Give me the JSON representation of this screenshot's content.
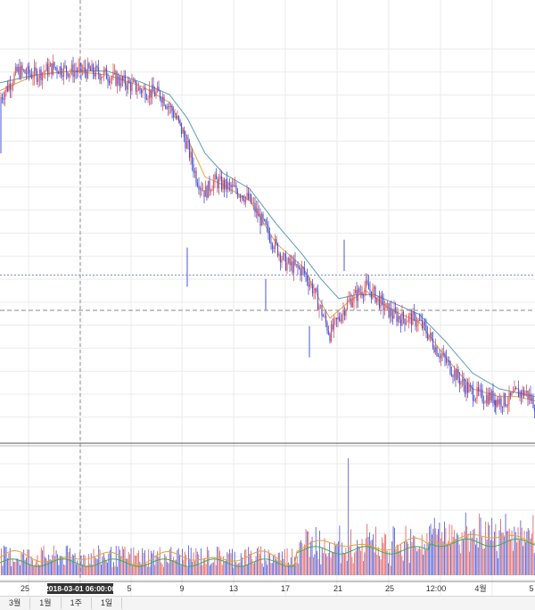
{
  "chart_data": {
    "type": "candlestick",
    "title": "",
    "xlabel": "",
    "ylabel": "",
    "grid": true,
    "legend": "none",
    "x_ticks": [
      "25",
      "5",
      "9",
      "13",
      "17",
      "21",
      "25",
      "12:00",
      "4월",
      "5"
    ],
    "crosshair_label": "2018-03-01 06:00:00",
    "colors": {
      "up_candle": "#e05a5a",
      "down_candle": "#4a55d6",
      "ma_short": "#e8a040",
      "ma_long": "#5b9bb5",
      "grid": "#ebebeb",
      "crosshair": "#8a8a8a",
      "price_line": "#7b83d6"
    },
    "close_trend": [
      {
        "x": 0,
        "y": 84
      },
      {
        "x": 2,
        "y": 91
      },
      {
        "x": 4,
        "y": 90
      },
      {
        "x": 6,
        "y": 92
      },
      {
        "x": 8,
        "y": 91
      },
      {
        "x": 10,
        "y": 91
      },
      {
        "x": 12,
        "y": 90
      },
      {
        "x": 14,
        "y": 88
      },
      {
        "x": 16,
        "y": 86
      },
      {
        "x": 18,
        "y": 85
      },
      {
        "x": 19,
        "y": 82
      },
      {
        "x": 20,
        "y": 78
      },
      {
        "x": 21,
        "y": 72
      },
      {
        "x": 22,
        "y": 64
      },
      {
        "x": 23,
        "y": 60
      },
      {
        "x": 24,
        "y": 63
      },
      {
        "x": 25,
        "y": 62
      },
      {
        "x": 26,
        "y": 61
      },
      {
        "x": 27,
        "y": 60
      },
      {
        "x": 28,
        "y": 58
      },
      {
        "x": 29,
        "y": 54
      },
      {
        "x": 30,
        "y": 50
      },
      {
        "x": 31,
        "y": 46
      },
      {
        "x": 32,
        "y": 42
      },
      {
        "x": 33,
        "y": 41
      },
      {
        "x": 34,
        "y": 40
      },
      {
        "x": 35,
        "y": 36
      },
      {
        "x": 36,
        "y": 30
      },
      {
        "x": 37,
        "y": 24
      },
      {
        "x": 38,
        "y": 28
      },
      {
        "x": 39,
        "y": 32
      },
      {
        "x": 40,
        "y": 34
      },
      {
        "x": 41,
        "y": 36
      },
      {
        "x": 42,
        "y": 34
      },
      {
        "x": 43,
        "y": 31
      },
      {
        "x": 44,
        "y": 29
      },
      {
        "x": 45,
        "y": 28
      },
      {
        "x": 46,
        "y": 28
      },
      {
        "x": 47,
        "y": 27
      },
      {
        "x": 48,
        "y": 24
      },
      {
        "x": 49,
        "y": 20
      },
      {
        "x": 50,
        "y": 17
      },
      {
        "x": 51,
        "y": 14
      },
      {
        "x": 52,
        "y": 11
      },
      {
        "x": 53,
        "y": 9
      },
      {
        "x": 54,
        "y": 8
      },
      {
        "x": 55,
        "y": 8
      },
      {
        "x": 56,
        "y": 7
      },
      {
        "x": 57,
        "y": 7
      },
      {
        "x": 58,
        "y": 9
      },
      {
        "x": 59,
        "y": 9
      },
      {
        "x": 60,
        "y": 6
      }
    ],
    "ma_short_trend": [
      {
        "x": 0,
        "y": 86
      },
      {
        "x": 4,
        "y": 90
      },
      {
        "x": 8,
        "y": 91
      },
      {
        "x": 12,
        "y": 90
      },
      {
        "x": 16,
        "y": 87
      },
      {
        "x": 19,
        "y": 83
      },
      {
        "x": 21,
        "y": 74
      },
      {
        "x": 23,
        "y": 64
      },
      {
        "x": 25,
        "y": 62
      },
      {
        "x": 28,
        "y": 58
      },
      {
        "x": 31,
        "y": 47
      },
      {
        "x": 34,
        "y": 41
      },
      {
        "x": 36,
        "y": 32
      },
      {
        "x": 37,
        "y": 28
      },
      {
        "x": 39,
        "y": 32
      },
      {
        "x": 41,
        "y": 35
      },
      {
        "x": 44,
        "y": 30
      },
      {
        "x": 47,
        "y": 27
      },
      {
        "x": 50,
        "y": 18
      },
      {
        "x": 53,
        "y": 10
      },
      {
        "x": 56,
        "y": 8
      },
      {
        "x": 58,
        "y": 8
      },
      {
        "x": 60,
        "y": 7
      }
    ],
    "ma_long_trend": [
      {
        "x": 0,
        "y": 88
      },
      {
        "x": 4,
        "y": 90
      },
      {
        "x": 8,
        "y": 91
      },
      {
        "x": 12,
        "y": 91
      },
      {
        "x": 16,
        "y": 88
      },
      {
        "x": 19,
        "y": 85
      },
      {
        "x": 21,
        "y": 79
      },
      {
        "x": 23,
        "y": 70
      },
      {
        "x": 25,
        "y": 65
      },
      {
        "x": 28,
        "y": 61
      },
      {
        "x": 31,
        "y": 52
      },
      {
        "x": 34,
        "y": 44
      },
      {
        "x": 36,
        "y": 38
      },
      {
        "x": 38,
        "y": 33
      },
      {
        "x": 40,
        "y": 34
      },
      {
        "x": 42,
        "y": 34
      },
      {
        "x": 44,
        "y": 32
      },
      {
        "x": 47,
        "y": 29
      },
      {
        "x": 50,
        "y": 22
      },
      {
        "x": 53,
        "y": 14
      },
      {
        "x": 56,
        "y": 10
      },
      {
        "x": 58,
        "y": 9
      },
      {
        "x": 60,
        "y": 8
      }
    ],
    "x_range": [
      0,
      60
    ],
    "y_range": [
      0,
      100
    ],
    "horizontal_marker_levels": [
      39,
      30
    ],
    "volume_spikes": [
      {
        "x": 38,
        "v": 45
      },
      {
        "x": 39,
        "v": 100
      },
      {
        "x": 35,
        "v": 30
      },
      {
        "x": 40,
        "v": 28
      },
      {
        "x": 51,
        "v": 25
      },
      {
        "x": 55,
        "v": 22
      }
    ]
  },
  "range_buttons": [
    "3월",
    "1월",
    "1주",
    "1일"
  ]
}
